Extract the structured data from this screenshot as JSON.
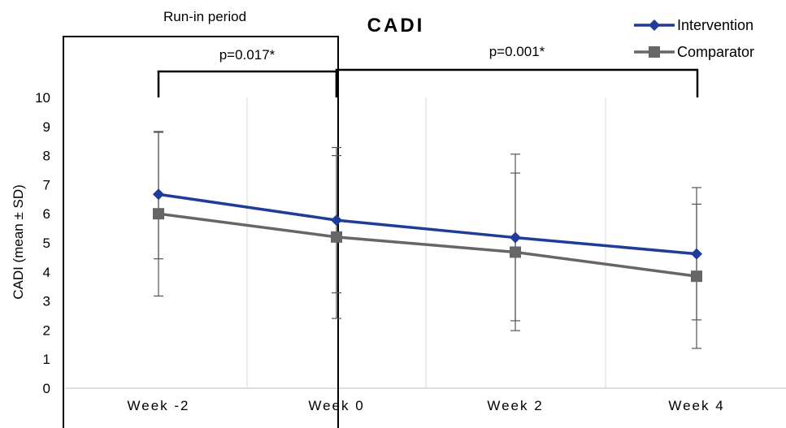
{
  "chart_data": {
    "type": "line",
    "title": "CADI",
    "xlabel": "",
    "ylabel": "CADI (mean ± SD)",
    "categories": [
      "Week -2",
      "Week 0",
      "Week 2",
      "Week 4"
    ],
    "ylim": [
      0,
      10
    ],
    "yticks": [
      0,
      1,
      2,
      3,
      4,
      5,
      6,
      7,
      8,
      9,
      10
    ],
    "grid": "vertical",
    "legend_position": "top-right",
    "series": [
      {
        "name": "Intervention",
        "color": "#1f3c99",
        "marker": "diamond",
        "values": [
          6.67,
          5.78,
          5.18,
          4.62
        ],
        "error_low": [
          4.45,
          3.28,
          2.32,
          2.35
        ],
        "error_high": [
          8.83,
          8.28,
          8.05,
          6.9
        ]
      },
      {
        "name": "Comparator",
        "color": "#666666",
        "marker": "square",
        "values": [
          6.0,
          5.2,
          4.68,
          3.85
        ],
        "error_low": [
          3.17,
          2.4,
          1.98,
          1.37
        ],
        "error_high": [
          8.8,
          8.0,
          7.4,
          6.33
        ]
      }
    ],
    "annotations": {
      "run_in_label": "Run-in period",
      "p_values": [
        {
          "text": "p=0.017*",
          "from": "Week -2",
          "to": "Week 0"
        },
        {
          "text": "p=0.001*",
          "from": "Week 0",
          "to": "Week 4"
        }
      ]
    }
  }
}
